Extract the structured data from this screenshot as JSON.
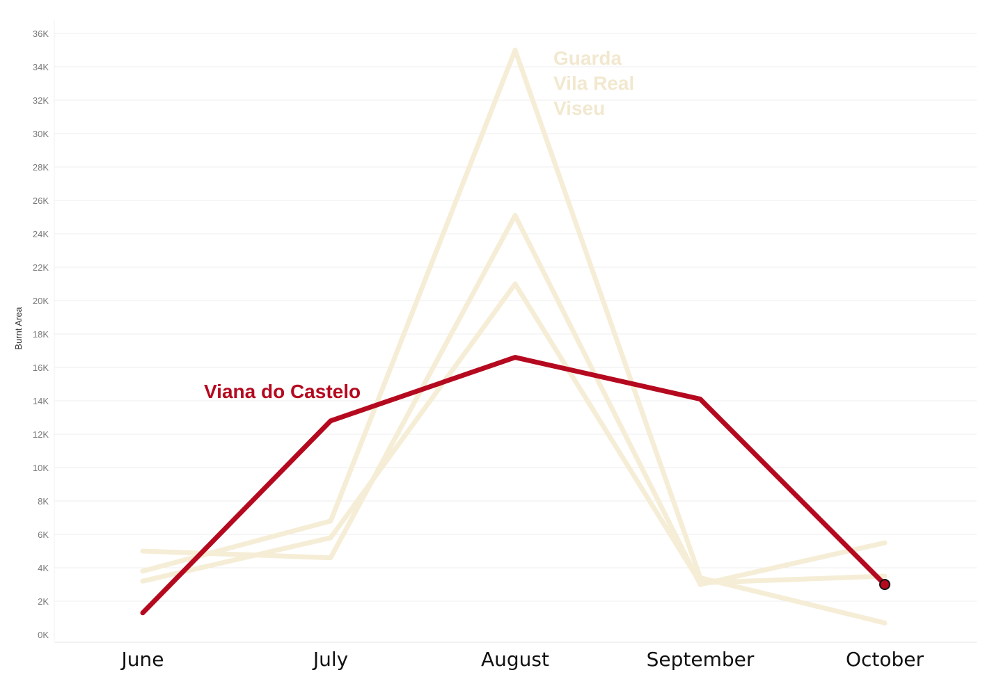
{
  "chart_data": {
    "type": "line",
    "title": "",
    "xlabel": "",
    "ylabel": "Burnt Area",
    "categories": [
      "June",
      "July",
      "August",
      "September",
      "October"
    ],
    "ylim": [
      0,
      36000
    ],
    "y_ticks": [
      0,
      2000,
      4000,
      6000,
      8000,
      10000,
      12000,
      14000,
      16000,
      18000,
      20000,
      22000,
      24000,
      26000,
      28000,
      30000,
      32000,
      34000,
      36000
    ],
    "y_tick_labels": [
      "0K",
      "2K",
      "4K",
      "6K",
      "8K",
      "10K",
      "12K",
      "14K",
      "16K",
      "18K",
      "20K",
      "22K",
      "24K",
      "26K",
      "28K",
      "30K",
      "32K",
      "34K",
      "36K"
    ],
    "grid": true,
    "series": [
      {
        "values": [
          3800,
          6800,
          35000,
          3400,
          700
        ],
        "color": "#f5edd6",
        "highlight": false
      },
      {
        "values": [
          5000,
          4600,
          25100,
          3000,
          5500
        ],
        "color": "#f5edd6",
        "highlight": false
      },
      {
        "values": [
          3200,
          5800,
          21000,
          3100,
          3500
        ],
        "color": "#f5edd6",
        "highlight": false
      },
      {
        "name": "Viana do Castelo",
        "values": [
          1300,
          12800,
          16600,
          14100,
          3000
        ],
        "color": "#b5091f",
        "highlight": true
      }
    ],
    "annotations": {
      "highlight_label": "Viana do Castelo",
      "other_labels": [
        "Guarda",
        "Vila Real",
        "Viseu"
      ]
    }
  },
  "colors": {
    "highlight": "#b5091f",
    "muted": "#f5edd6",
    "muted_label": "#f1e8cf",
    "grid": "#ececec"
  }
}
